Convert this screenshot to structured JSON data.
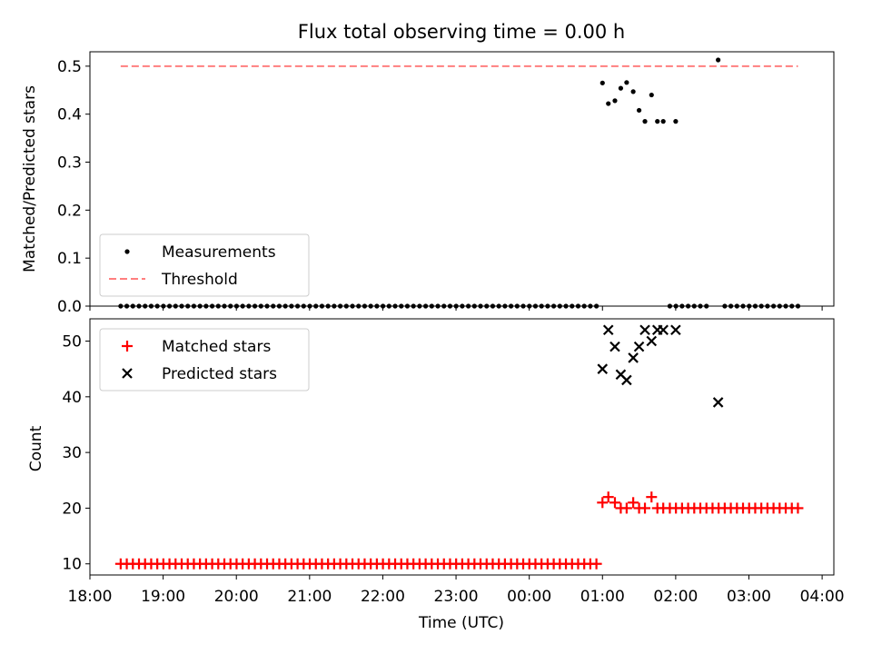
{
  "title": "Flux total observing time = 0.00 h",
  "chart_data": [
    {
      "type": "scatter",
      "ylabel": "Matched/Predicted stars",
      "xlim": [
        18.0,
        28.16
      ],
      "ylim": [
        0,
        0.53
      ],
      "yticks": [
        0.0,
        0.1,
        0.2,
        0.3,
        0.4,
        0.5
      ],
      "ytick_labels": [
        "0.0",
        "0.1",
        "0.2",
        "0.3",
        "0.4",
        "0.5"
      ],
      "legend": {
        "position": "lower left",
        "entries": [
          "Measurements",
          "Threshold"
        ]
      },
      "series": [
        {
          "name": "Measurements",
          "color": "#000000",
          "marker": "dot",
          "zero_segments": [
            [
              18.42,
              24.92
            ],
            [
              25.92,
              26.5
            ],
            [
              26.67,
              27.67
            ]
          ],
          "zero_step": 0.0833,
          "points": [
            {
              "x": 25.0,
              "y": 0.465
            },
            {
              "x": 25.08,
              "y": 0.422
            },
            {
              "x": 25.17,
              "y": 0.428
            },
            {
              "x": 25.25,
              "y": 0.454
            },
            {
              "x": 25.33,
              "y": 0.466
            },
            {
              "x": 25.42,
              "y": 0.447
            },
            {
              "x": 25.5,
              "y": 0.408
            },
            {
              "x": 25.58,
              "y": 0.385
            },
            {
              "x": 25.67,
              "y": 0.44
            },
            {
              "x": 25.75,
              "y": 0.385
            },
            {
              "x": 25.83,
              "y": 0.385
            },
            {
              "x": 26.0,
              "y": 0.385
            },
            {
              "x": 26.58,
              "y": 0.513
            }
          ]
        },
        {
          "name": "Threshold",
          "color": "#ff7f7f",
          "style": "dashed",
          "x": [
            18.42,
            27.67
          ],
          "y": [
            0.5,
            0.5
          ]
        }
      ]
    },
    {
      "type": "scatter",
      "ylabel": "Count",
      "xlabel": "Time (UTC)",
      "xlim": [
        18.0,
        28.16
      ],
      "ylim": [
        8,
        54
      ],
      "yticks": [
        10,
        20,
        30,
        40,
        50
      ],
      "ytick_labels": [
        "10",
        "20",
        "30",
        "40",
        "50"
      ],
      "xticks": [
        18,
        19,
        20,
        21,
        22,
        23,
        24,
        25,
        26,
        27,
        28
      ],
      "xtick_labels": [
        "18:00",
        "19:00",
        "20:00",
        "21:00",
        "22:00",
        "23:00",
        "00:00",
        "01:00",
        "02:00",
        "03:00",
        "04:00"
      ],
      "legend": {
        "position": "upper left",
        "entries": [
          "Matched stars",
          "Predicted stars"
        ]
      },
      "series": [
        {
          "name": "Matched stars",
          "color": "#ff0000",
          "marker": "plus",
          "constant_segments": [
            {
              "from": 18.42,
              "to": 24.92,
              "step": 0.0833,
              "y": 10
            },
            {
              "from": 25.92,
              "to": 27.67,
              "step": 0.0833,
              "y": 20
            }
          ],
          "points": [
            {
              "x": 25.0,
              "y": 21
            },
            {
              "x": 25.08,
              "y": 22
            },
            {
              "x": 25.17,
              "y": 21
            },
            {
              "x": 25.25,
              "y": 20
            },
            {
              "x": 25.33,
              "y": 20
            },
            {
              "x": 25.42,
              "y": 21
            },
            {
              "x": 25.5,
              "y": 20
            },
            {
              "x": 25.58,
              "y": 20
            },
            {
              "x": 25.67,
              "y": 22
            },
            {
              "x": 25.75,
              "y": 20
            },
            {
              "x": 25.83,
              "y": 20
            }
          ]
        },
        {
          "name": "Predicted stars",
          "color": "#000000",
          "marker": "x",
          "points": [
            {
              "x": 25.0,
              "y": 45
            },
            {
              "x": 25.08,
              "y": 52
            },
            {
              "x": 25.17,
              "y": 49
            },
            {
              "x": 25.25,
              "y": 44
            },
            {
              "x": 25.33,
              "y": 43
            },
            {
              "x": 25.42,
              "y": 47
            },
            {
              "x": 25.5,
              "y": 49
            },
            {
              "x": 25.58,
              "y": 52
            },
            {
              "x": 25.67,
              "y": 50
            },
            {
              "x": 25.75,
              "y": 52
            },
            {
              "x": 25.83,
              "y": 52
            },
            {
              "x": 26.0,
              "y": 52
            },
            {
              "x": 26.58,
              "y": 39
            }
          ]
        }
      ]
    }
  ]
}
